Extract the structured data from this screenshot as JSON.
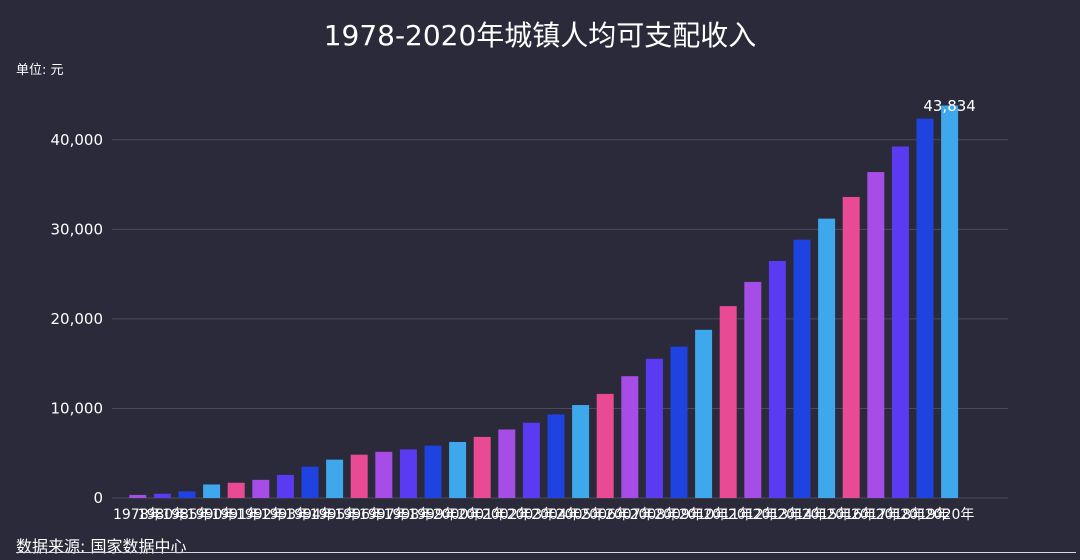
{
  "chart_data": {
    "type": "bar",
    "title": "1978-2020年城镇人均可支配收入",
    "unit_label": "单位: 元",
    "source": "数据来源: 国家数据中心",
    "xlabel": "",
    "ylabel": "",
    "ylim": [
      0,
      45000
    ],
    "yticks": [
      0,
      10000,
      20000,
      30000,
      40000
    ],
    "ytick_labels": [
      "0",
      "10,000",
      "20,000",
      "30,000",
      "40,000"
    ],
    "grid": true,
    "legend": "none",
    "categories": [
      "1978年",
      "1980年",
      "1985年",
      "1990年",
      "1991年",
      "1992年",
      "1993年",
      "1994年",
      "1995年",
      "1996年",
      "1997年",
      "1998年",
      "1999年",
      "2000年",
      "2001年",
      "2002年",
      "2003年",
      "2004年",
      "2005年",
      "2006年",
      "2007年",
      "2008年",
      "2009年",
      "2010年",
      "2011年",
      "2012年",
      "2013年",
      "2014年",
      "2015年",
      "2016年",
      "2017年",
      "2018年",
      "2019年",
      "2020年"
    ],
    "values": [
      343,
      478,
      739,
      1510,
      1701,
      2027,
      2577,
      3496,
      4283,
      4839,
      5160,
      5425,
      5854,
      6256,
      6824,
      7652,
      8406,
      9335,
      10382,
      11620,
      13603,
      15549,
      16901,
      18779,
      21427,
      24127,
      26467,
      28844,
      31195,
      33616,
      36396,
      39251,
      42359,
      43834
    ],
    "value_labels": [
      "",
      "",
      "",
      "",
      "",
      "",
      "",
      "",
      "",
      "",
      "",
      "",
      "",
      "",
      "",
      "",
      "",
      "",
      "",
      "",
      "",
      "",
      "",
      "",
      "",
      "",
      "",
      "",
      "",
      "",
      "",
      "",
      "",
      "43,834"
    ],
    "bar_colors": [
      "#a54de6",
      "#5a3bf2",
      "#1f43e0",
      "#3fa7ec",
      "#e84a93",
      "#a54de6",
      "#5a3bf2",
      "#1f43e0",
      "#3fa7ec",
      "#e84a93",
      "#a54de6",
      "#5a3bf2",
      "#1f43e0",
      "#3fa7ec",
      "#e84a93",
      "#a54de6",
      "#5a3bf2",
      "#1f43e0",
      "#3fa7ec",
      "#e84a93",
      "#a54de6",
      "#5a3bf2",
      "#1f43e0",
      "#3fa7ec",
      "#e84a93",
      "#a54de6",
      "#5a3bf2",
      "#1f43e0",
      "#3fa7ec",
      "#e84a93",
      "#a54de6",
      "#5a3bf2",
      "#1f43e0",
      "#3fa7ec"
    ],
    "background": "#2b2a3a",
    "grid_color": "#4a4a5c"
  }
}
